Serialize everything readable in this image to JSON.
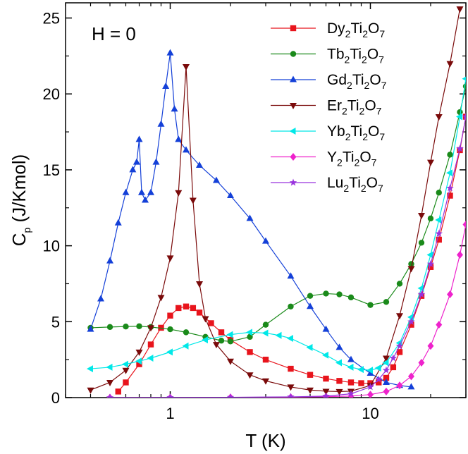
{
  "chart_data": {
    "type": "scatter",
    "xscale": "log",
    "xlim": [
      0.3,
      30
    ],
    "ylim": [
      0,
      26
    ],
    "xlabel": "T (K)",
    "ylabel_main": "C",
    "ylabel_sub": "p",
    "ylabel_rest": " (J/Kmol)",
    "annotation": "H = 0",
    "legend_position": "top-right",
    "x_ticks": [
      {
        "value": 1,
        "label": "1"
      },
      {
        "value": 10,
        "label": "10"
      }
    ],
    "y_ticks": [
      {
        "value": 0,
        "label": "0"
      },
      {
        "value": 5,
        "label": "5"
      },
      {
        "value": 10,
        "label": "10"
      },
      {
        "value": 15,
        "label": "15"
      },
      {
        "value": 20,
        "label": "20"
      },
      {
        "value": 25,
        "label": "25"
      }
    ],
    "series": [
      {
        "name": "Dy2Ti2O7",
        "legend": {
          "parts": [
            "Dy",
            "2",
            "Ti",
            "2",
            "O",
            "7"
          ]
        },
        "color": "#e8141c",
        "marker": "square",
        "x": [
          0.55,
          0.6,
          0.7,
          0.8,
          0.9,
          1.0,
          1.1,
          1.2,
          1.3,
          1.4,
          1.6,
          1.8,
          2.0,
          2.5,
          3.0,
          4.0,
          5.0,
          6.0,
          7.0,
          8.0,
          9.0,
          10.0,
          11.0,
          12.0,
          13.0,
          14.0,
          16.0,
          18.0,
          20.0,
          22.0,
          25.0,
          28.0,
          30.0
        ],
        "y": [
          0.4,
          1.0,
          2.2,
          3.5,
          4.6,
          5.4,
          5.9,
          6.0,
          5.9,
          5.6,
          4.9,
          4.3,
          3.8,
          3.0,
          2.5,
          1.9,
          1.5,
          1.25,
          1.1,
          1.0,
          0.95,
          0.95,
          1.0,
          1.3,
          2.0,
          3.0,
          4.8,
          6.7,
          8.6,
          10.4,
          13.3,
          16.3,
          18.5
        ]
      },
      {
        "name": "Tb2Ti2O7",
        "legend": {
          "parts": [
            "Tb",
            "2",
            "Ti",
            "2",
            "O",
            "7"
          ]
        },
        "color": "#1a8a1a",
        "marker": "circle",
        "x": [
          0.4,
          0.5,
          0.6,
          0.7,
          0.8,
          1.0,
          1.2,
          1.5,
          1.8,
          2.0,
          2.5,
          3.0,
          4.0,
          5.0,
          6.0,
          7.0,
          8.0,
          10.0,
          12.0,
          14.0,
          16.0,
          18.0,
          20.0,
          22.0,
          25.0,
          28.0,
          30.0
        ],
        "y": [
          4.6,
          4.65,
          4.68,
          4.7,
          4.65,
          4.5,
          4.3,
          4.0,
          3.75,
          3.7,
          4.0,
          4.8,
          6.0,
          6.7,
          6.85,
          6.8,
          6.6,
          6.1,
          6.3,
          7.5,
          8.8,
          10.2,
          11.8,
          13.5,
          16.0,
          18.8,
          20.5
        ]
      },
      {
        "name": "Gd2Ti2O7",
        "legend": {
          "parts": [
            "Gd",
            "2",
            "Ti",
            "2",
            "O",
            "7"
          ]
        },
        "color": "#1440d8",
        "marker": "triangle-up",
        "x": [
          0.4,
          0.45,
          0.5,
          0.55,
          0.6,
          0.65,
          0.68,
          0.7,
          0.72,
          0.75,
          0.8,
          0.85,
          0.9,
          0.95,
          1.0,
          1.05,
          1.1,
          1.2,
          1.4,
          1.7,
          2.0,
          2.5,
          3.0,
          4.0,
          5.0,
          6.0,
          7.0,
          8.0,
          10.0,
          12.0,
          14.0,
          16.0
        ],
        "y": [
          4.5,
          6.5,
          9.0,
          11.5,
          13.5,
          15.0,
          15.5,
          17.0,
          13.5,
          13.0,
          13.5,
          15.5,
          18.0,
          20.5,
          22.7,
          19.0,
          17.0,
          16.3,
          15.3,
          14.3,
          13.3,
          11.8,
          10.3,
          8.0,
          6.0,
          4.5,
          3.3,
          2.5,
          1.6,
          1.0,
          0.8,
          0.7
        ]
      },
      {
        "name": "Er2Ti2O7",
        "legend": {
          "parts": [
            "Er",
            "2",
            "Ti",
            "2",
            "O",
            "7"
          ]
        },
        "color": "#7a0a0a",
        "marker": "triangle-down",
        "x": [
          0.4,
          0.5,
          0.6,
          0.7,
          0.8,
          0.9,
          1.0,
          1.1,
          1.2,
          1.3,
          1.4,
          1.5,
          1.7,
          2.0,
          2.5,
          3.0,
          4.0,
          5.0,
          6.0,
          7.0,
          8.0,
          10.0,
          12.0,
          14.0,
          16.0,
          18.0,
          20.0,
          22.0,
          25.0,
          28.0
        ],
        "y": [
          0.5,
          1.0,
          1.8,
          3.0,
          4.6,
          6.6,
          9.2,
          13.5,
          21.8,
          13.0,
          7.5,
          5.2,
          3.5,
          2.4,
          1.5,
          1.1,
          0.7,
          0.5,
          0.42,
          0.4,
          0.42,
          0.8,
          2.6,
          5.4,
          8.5,
          12.0,
          15.5,
          18.5,
          22.0,
          25.6
        ]
      },
      {
        "name": "Yb2Ti2O7",
        "legend": {
          "parts": [
            "Yb",
            "2",
            "Ti",
            "2",
            "O",
            "7"
          ]
        },
        "color": "#00e8e8",
        "marker": "triangle-left",
        "x": [
          0.4,
          0.5,
          0.6,
          0.7,
          0.8,
          1.0,
          1.2,
          1.5,
          2.0,
          2.5,
          3.0,
          3.5,
          4.0,
          5.0,
          6.0,
          7.0,
          8.0,
          9.0,
          10.0,
          11.0,
          12.0,
          14.0,
          16.0,
          18.0,
          20.0,
          22.0,
          25.0,
          28.0,
          30.0
        ],
        "y": [
          1.9,
          2.0,
          2.2,
          2.4,
          2.6,
          3.0,
          3.4,
          3.8,
          4.15,
          4.3,
          4.25,
          4.1,
          3.9,
          3.3,
          2.8,
          2.3,
          2.0,
          1.85,
          1.8,
          1.95,
          2.3,
          3.6,
          5.3,
          7.2,
          9.4,
          11.7,
          14.8,
          18.5,
          21.0
        ]
      },
      {
        "name": "Y2Ti2O7",
        "legend": {
          "parts": [
            "Y",
            "2",
            "Ti",
            "2",
            "O",
            "7"
          ]
        },
        "color": "#ee22cc",
        "marker": "diamond",
        "x": [
          0.5,
          1.0,
          2.0,
          4.0,
          6.0,
          8.0,
          10.0,
          12.0,
          14.0,
          16.0,
          18.0,
          20.0,
          22.0,
          25.0,
          28.0,
          30.0
        ],
        "y": [
          0.0,
          0.0,
          0.02,
          0.03,
          0.06,
          0.1,
          0.2,
          0.4,
          0.8,
          1.4,
          2.3,
          3.4,
          4.8,
          6.8,
          9.4,
          11.4
        ]
      },
      {
        "name": "Lu2Ti2O7",
        "legend": {
          "parts": [
            "Lu",
            "2",
            "Ti",
            "2",
            "O",
            "7"
          ]
        },
        "color": "#9933dd",
        "marker": "star",
        "x": [
          0.5,
          1.0,
          2.0,
          4.0,
          6.0,
          8.0,
          10.0,
          11.0,
          12.0,
          13.0,
          14.0,
          16.0,
          18.0,
          20.0,
          22.0,
          25.0,
          28.0,
          30.0
        ],
        "y": [
          0.0,
          0.01,
          0.02,
          0.05,
          0.1,
          0.25,
          0.7,
          1.2,
          1.8,
          2.6,
          3.4,
          5.0,
          6.8,
          8.8,
          10.8,
          13.8,
          16.4,
          18.5
        ]
      }
    ]
  }
}
